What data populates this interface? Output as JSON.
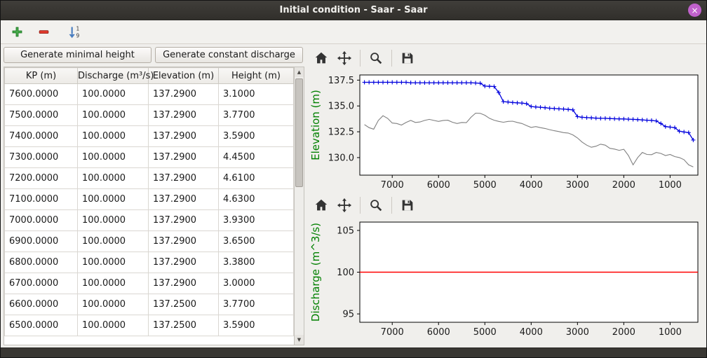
{
  "window": {
    "title": "Initial condition - Saar - Saar",
    "close_glyph": "×"
  },
  "colors": {
    "titlebar": "#35332f",
    "close_button": "#c061cb",
    "window_bg": "#f0efec",
    "elevation_line": "#0000dd",
    "bed_line": "#808080",
    "discharge_line": "#ff0000",
    "axis_label_green": "#008000",
    "add_icon_green": "#4caf50",
    "remove_icon_red": "#e23b2e",
    "sort_icon_blue": "#4a7ec0"
  },
  "main_toolbar": {
    "icons": [
      "add-icon",
      "remove-icon",
      "sort-descending-icon"
    ],
    "sort_icon": {
      "top_digit": "1",
      "bottom_digit": "9"
    }
  },
  "plot_toolbar": {
    "icons": [
      "home-icon",
      "pan-icon",
      "zoom-icon",
      "save-icon"
    ]
  },
  "left_panel": {
    "buttons": [
      {
        "label": "Generate minimal height"
      },
      {
        "label": "Generate constant discharge"
      }
    ],
    "scrollbar": {
      "up_glyph": "▲",
      "down_glyph": "▼"
    },
    "table": {
      "columns": [
        "KP (m)",
        "Discharge (m³/s)",
        "Elevation (m)",
        "Height (m)"
      ],
      "rows": [
        [
          "7600.0000",
          "100.0000",
          "137.2900",
          "3.1000"
        ],
        [
          "7500.0000",
          "100.0000",
          "137.2900",
          "3.7700"
        ],
        [
          "7400.0000",
          "100.0000",
          "137.2900",
          "3.5900"
        ],
        [
          "7300.0000",
          "100.0000",
          "137.2900",
          "4.4500"
        ],
        [
          "7200.0000",
          "100.0000",
          "137.2900",
          "4.6100"
        ],
        [
          "7100.0000",
          "100.0000",
          "137.2900",
          "4.6300"
        ],
        [
          "7000.0000",
          "100.0000",
          "137.2900",
          "3.9300"
        ],
        [
          "6900.0000",
          "100.0000",
          "137.2900",
          "3.6500"
        ],
        [
          "6800.0000",
          "100.0000",
          "137.2900",
          "3.3800"
        ],
        [
          "6700.0000",
          "100.0000",
          "137.2900",
          "3.0000"
        ],
        [
          "6600.0000",
          "100.0000",
          "137.2500",
          "3.7700"
        ],
        [
          "6500.0000",
          "100.0000",
          "137.2500",
          "3.5900"
        ]
      ]
    }
  },
  "chart_data": [
    {
      "type": "line",
      "title": "",
      "xlabel": "",
      "ylabel": "Elevation (m)",
      "ylabel_color": "#008000",
      "grid": false,
      "legend": "none",
      "xlim": [
        7700,
        400
      ],
      "ylim": [
        128.3,
        138.0
      ],
      "xticks": [
        7000,
        6000,
        5000,
        4000,
        3000,
        2000,
        1000
      ],
      "yticks": [
        137.5,
        135.0,
        132.5,
        130.0
      ],
      "ytick_labels": [
        "137.5",
        "135.0",
        "132.5",
        "130.0"
      ],
      "series": [
        {
          "name": "water-surface-elevation",
          "color": "#0000dd",
          "marker": "+",
          "width": 1.3,
          "x_start": 7600,
          "x_step": -100,
          "y": [
            137.29,
            137.29,
            137.29,
            137.29,
            137.29,
            137.29,
            137.29,
            137.29,
            137.29,
            137.29,
            137.25,
            137.25,
            137.25,
            137.25,
            137.25,
            137.25,
            137.25,
            137.25,
            137.25,
            137.25,
            137.25,
            137.25,
            137.25,
            137.25,
            137.22,
            137.2,
            136.92,
            136.9,
            136.88,
            136.3,
            135.42,
            135.38,
            135.33,
            135.3,
            135.28,
            135.22,
            134.95,
            134.9,
            134.87,
            134.83,
            134.78,
            134.75,
            134.72,
            134.7,
            134.66,
            134.62,
            133.97,
            133.9,
            133.87,
            133.85,
            133.82,
            133.8,
            133.8,
            133.78,
            133.76,
            133.75,
            133.74,
            133.72,
            133.7,
            133.68,
            133.65,
            133.62,
            133.6,
            133.55,
            133.3,
            133.0,
            132.95,
            132.9,
            132.55,
            132.48,
            132.42,
            131.7
          ]
        },
        {
          "name": "bed-elevation",
          "color": "#808080",
          "marker": "",
          "width": 1.1,
          "x_start": 7600,
          "x_step": -100,
          "y": [
            133.2,
            132.9,
            132.75,
            133.6,
            134.05,
            133.8,
            133.35,
            133.3,
            133.15,
            133.4,
            133.6,
            133.4,
            133.45,
            133.6,
            133.7,
            133.6,
            133.5,
            133.6,
            133.62,
            133.42,
            133.3,
            133.4,
            133.38,
            133.9,
            134.3,
            134.28,
            134.1,
            133.8,
            133.62,
            133.5,
            133.42,
            133.5,
            133.52,
            133.4,
            133.3,
            133.1,
            132.92,
            133.0,
            132.9,
            132.82,
            132.7,
            132.6,
            132.52,
            132.42,
            132.38,
            132.2,
            131.9,
            131.5,
            131.2,
            131.0,
            131.1,
            131.3,
            131.2,
            130.9,
            130.82,
            130.7,
            130.8,
            130.2,
            129.3,
            130.0,
            130.5,
            130.3,
            130.28,
            130.5,
            130.4,
            130.2,
            130.3,
            130.1,
            130.0,
            129.8,
            129.3,
            129.1
          ]
        }
      ]
    },
    {
      "type": "line",
      "title": "",
      "xlabel": "",
      "ylabel": "Discharge (m^3/s)",
      "ylabel_color": "#008000",
      "grid": false,
      "legend": "none",
      "xlim": [
        7700,
        400
      ],
      "ylim": [
        94,
        106
      ],
      "xticks": [
        7000,
        6000,
        5000,
        4000,
        3000,
        2000,
        1000
      ],
      "yticks": [
        105,
        100,
        95
      ],
      "ytick_labels": [
        "105",
        "100",
        "95"
      ],
      "series": [
        {
          "name": "constant-discharge",
          "color": "#ff0000",
          "marker": "",
          "width": 1.5,
          "x": [
            7700,
            400
          ],
          "y": [
            100,
            100
          ]
        }
      ]
    }
  ]
}
